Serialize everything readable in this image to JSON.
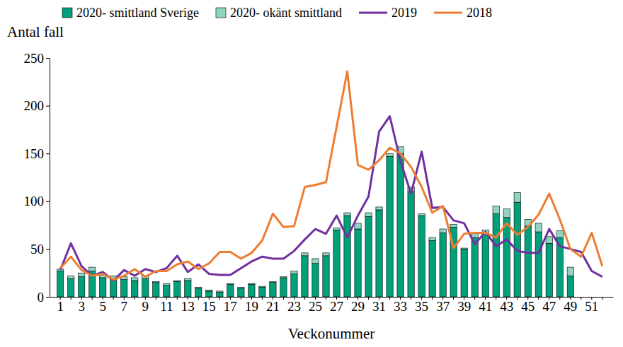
{
  "chart_data": {
    "type": "bar",
    "stacked": true,
    "legend": "top",
    "grid": false,
    "y_label": "Antal fall",
    "x_label": "Veckonummer",
    "categories": [
      1,
      null,
      3,
      null,
      5,
      null,
      7,
      null,
      9,
      null,
      11,
      null,
      13,
      null,
      15,
      null,
      17,
      null,
      19,
      null,
      21,
      null,
      23,
      null,
      25,
      null,
      27,
      null,
      29,
      null,
      31,
      null,
      33,
      null,
      35,
      null,
      37,
      null,
      39,
      null,
      41,
      null,
      43,
      null,
      45,
      null,
      47,
      null,
      49,
      null,
      51,
      null
    ],
    "ylim": [
      0,
      250
    ],
    "yticks": [
      0,
      50,
      100,
      150,
      200,
      250
    ],
    "series": [
      {
        "name": "2020- smittland Sverige",
        "type": "bar",
        "color": "#00a07a",
        "values": [
          27,
          19,
          21,
          27,
          20,
          18,
          18,
          17,
          19,
          15,
          12,
          16,
          17,
          9,
          6,
          5,
          13,
          9,
          13,
          10,
          15,
          20,
          24,
          43,
          35,
          43,
          70,
          85,
          71,
          84,
          91,
          147,
          150,
          110,
          85,
          59,
          67,
          73,
          50,
          62,
          66,
          87,
          83,
          99,
          74,
          68,
          56,
          62,
          22,
          null,
          null,
          null
        ]
      },
      {
        "name": "2020- okänt smittland",
        "type": "bar",
        "color": "#8fd5c1",
        "values": [
          2,
          3,
          4,
          4,
          3,
          4,
          3,
          3,
          3,
          1,
          2,
          1,
          2,
          1,
          1,
          1,
          1,
          1,
          1,
          1,
          1,
          1,
          3,
          3,
          5,
          3,
          2,
          3,
          6,
          4,
          3,
          3,
          7,
          5,
          2,
          3,
          4,
          3,
          1,
          4,
          4,
          8,
          9,
          10,
          7,
          9,
          7,
          7,
          9,
          null,
          null,
          null
        ]
      },
      {
        "name": "2019",
        "type": "line",
        "color": "#7030a0",
        "values": [
          28,
          56,
          32,
          22,
          26,
          17,
          28,
          22,
          29,
          26,
          30,
          43,
          26,
          34,
          24,
          23,
          23,
          30,
          37,
          42,
          40,
          40,
          48,
          60,
          71,
          66,
          85,
          62,
          85,
          105,
          173,
          189,
          142,
          108,
          152,
          93,
          94,
          80,
          77,
          55,
          68,
          53,
          60,
          48,
          46,
          46,
          71,
          53,
          50,
          47,
          27,
          21
        ]
      },
      {
        "name": "2018",
        "type": "line",
        "color": "#ed7d31",
        "values": [
          30,
          42,
          28,
          22,
          24,
          18,
          22,
          29,
          21,
          27,
          27,
          34,
          37,
          29,
          35,
          47,
          47,
          40,
          46,
          59,
          87,
          73,
          74,
          115,
          117,
          120,
          178,
          236,
          138,
          133,
          143,
          156,
          150,
          136,
          115,
          88,
          95,
          51,
          66,
          67,
          67,
          62,
          77,
          65,
          73,
          86,
          108,
          81,
          50,
          42,
          67,
          32
        ]
      }
    ]
  }
}
